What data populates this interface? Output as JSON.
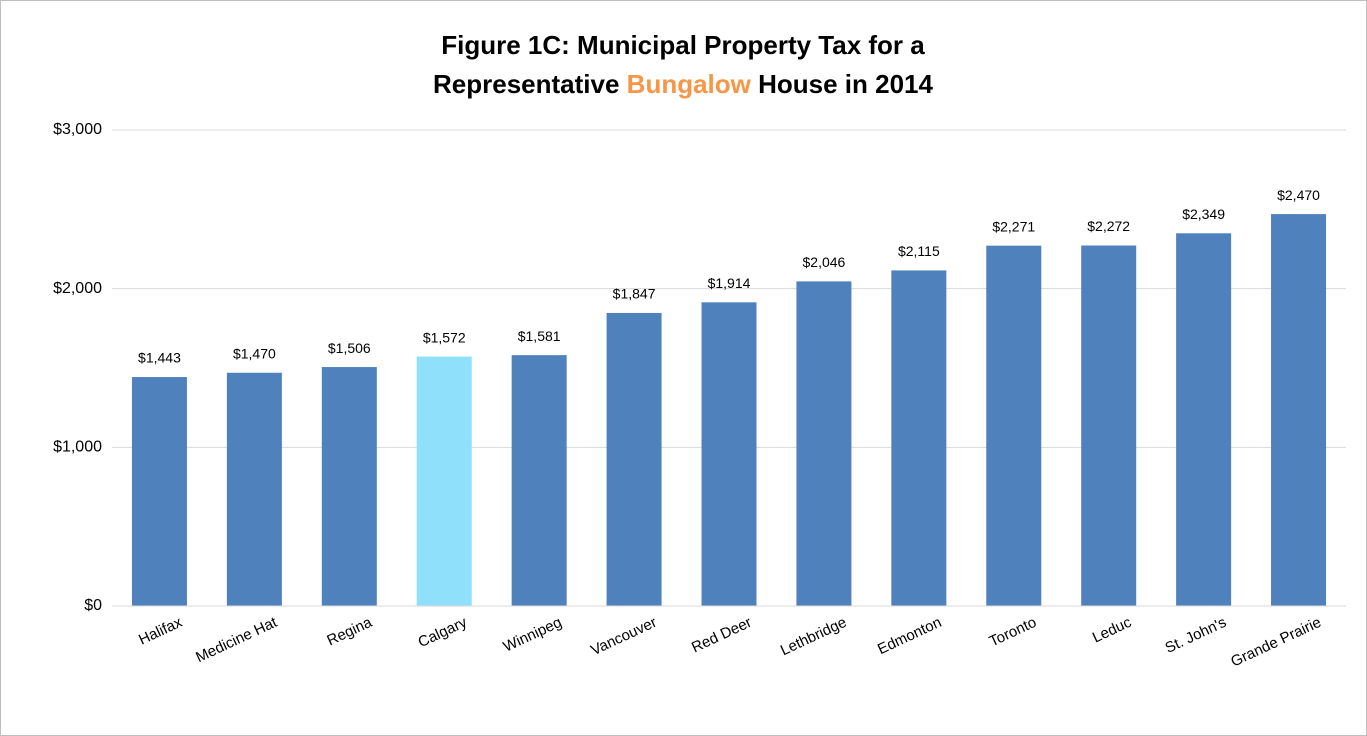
{
  "chart_data": {
    "type": "bar",
    "title_parts": [
      {
        "text": "Figure 1C: Municipal Property Tax for a",
        "color": "#000000"
      },
      {
        "text": "Representative",
        "color": "#000000"
      },
      {
        "text": "Bungalow",
        "color": "#f79646"
      },
      {
        "text": "House in 2014",
        "color": "#000000"
      }
    ],
    "categories": [
      "Halifax",
      "Medicine Hat",
      "Regina",
      "Calgary",
      "Winnipeg",
      "Vancouver",
      "Red Deer",
      "Lethbridge",
      "Edmonton",
      "Toronto",
      "Leduc",
      "St. John's",
      "Grande Prairie"
    ],
    "values": [
      1443,
      1470,
      1506,
      1572,
      1581,
      1847,
      1914,
      2046,
      2115,
      2271,
      2272,
      2349,
      2470
    ],
    "value_labels": [
      "$1,443",
      "$1,470",
      "$1,506",
      "$1,572",
      "$1,581",
      "$1,847",
      "$1,914",
      "$2,046",
      "$2,115",
      "$2,271",
      "$2,272",
      "$2,349",
      "$2,470"
    ],
    "colors": [
      "#4f81bd",
      "#4f81bd",
      "#4f81bd",
      "#8ee0fb",
      "#4f81bd",
      "#4f81bd",
      "#4f81bd",
      "#4f81bd",
      "#4f81bd",
      "#4f81bd",
      "#4f81bd",
      "#4f81bd",
      "#4f81bd"
    ],
    "ylim": [
      0,
      3000
    ],
    "yticks": [
      {
        "value": 0,
        "label": "$0"
      },
      {
        "value": 1000,
        "label": "$1,000"
      },
      {
        "value": 2000,
        "label": "$2,000"
      },
      {
        "value": 3000,
        "label": "$3,000"
      }
    ],
    "grid": true
  }
}
